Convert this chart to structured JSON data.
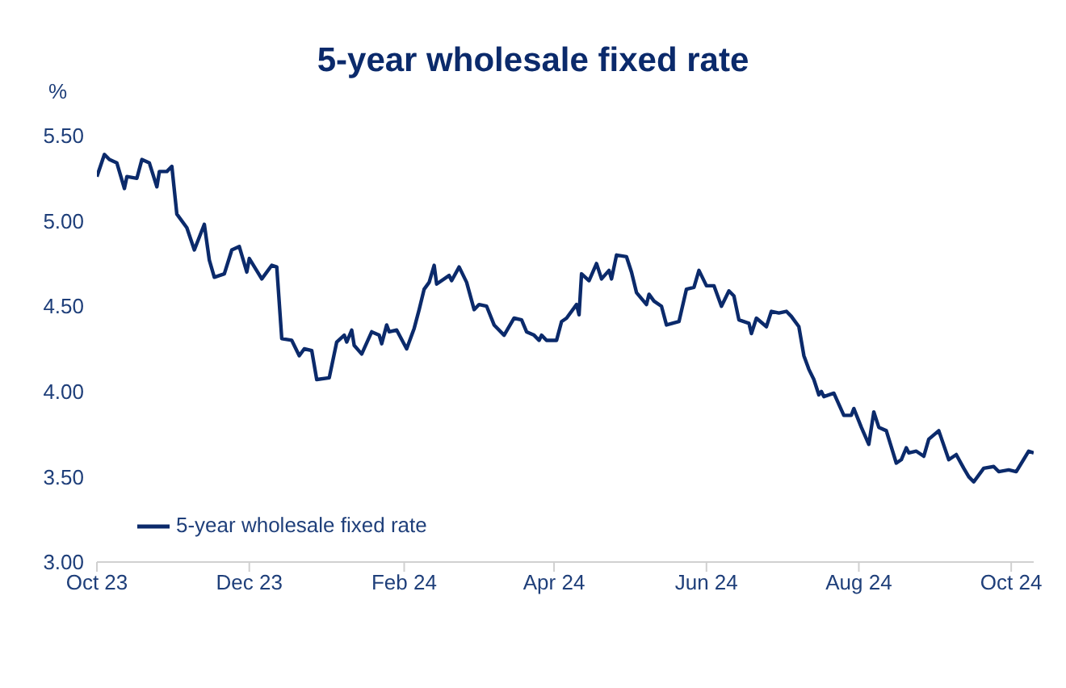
{
  "chart_data": {
    "type": "line",
    "title": "5-year wholesale fixed rate",
    "ylabel": "%",
    "x": [
      "2023-10-01",
      "2023-10-04",
      "2023-10-06",
      "2023-10-09",
      "2023-10-12",
      "2023-10-13",
      "2023-10-17",
      "2023-10-19",
      "2023-10-22",
      "2023-10-25",
      "2023-10-26",
      "2023-10-29",
      "2023-10-31",
      "2023-11-02",
      "2023-11-06",
      "2023-11-09",
      "2023-11-13",
      "2023-11-15",
      "2023-11-17",
      "2023-11-21",
      "2023-11-24",
      "2023-11-27",
      "2023-11-30",
      "2023-12-01",
      "2023-12-06",
      "2023-12-10",
      "2023-12-12",
      "2023-12-14",
      "2023-12-18",
      "2023-12-21",
      "2023-12-23",
      "2023-12-26",
      "2023-12-28",
      "2024-01-02",
      "2024-01-05",
      "2024-01-08",
      "2024-01-09",
      "2024-01-11",
      "2024-01-12",
      "2024-01-15",
      "2024-01-19",
      "2024-01-22",
      "2024-01-23",
      "2024-01-25",
      "2024-01-26",
      "2024-01-29",
      "2024-02-02",
      "2024-02-05",
      "2024-02-07",
      "2024-02-09",
      "2024-02-11",
      "2024-02-13",
      "2024-02-14",
      "2024-02-19",
      "2024-02-20",
      "2024-02-23",
      "2024-02-26",
      "2024-02-29",
      "2024-03-02",
      "2024-03-05",
      "2024-03-08",
      "2024-03-12",
      "2024-03-16",
      "2024-03-19",
      "2024-03-21",
      "2024-03-24",
      "2024-03-26",
      "2024-03-27",
      "2024-03-29",
      "2024-04-02",
      "2024-04-04",
      "2024-04-06",
      "2024-04-10",
      "2024-04-11",
      "2024-04-12",
      "2024-04-15",
      "2024-04-18",
      "2024-04-20",
      "2024-04-23",
      "2024-04-24",
      "2024-04-26",
      "2024-04-30",
      "2024-05-02",
      "2024-05-04",
      "2024-05-08",
      "2024-05-09",
      "2024-05-11",
      "2024-05-14",
      "2024-05-16",
      "2024-05-21",
      "2024-05-24",
      "2024-05-27",
      "2024-05-29",
      "2024-06-01",
      "2024-06-04",
      "2024-06-07",
      "2024-06-10",
      "2024-06-12",
      "2024-06-14",
      "2024-06-18",
      "2024-06-19",
      "2024-06-21",
      "2024-06-25",
      "2024-06-27",
      "2024-06-30",
      "2024-07-03",
      "2024-07-05",
      "2024-07-08",
      "2024-07-10",
      "2024-07-12",
      "2024-07-14",
      "2024-07-16",
      "2024-07-17",
      "2024-07-18",
      "2024-07-22",
      "2024-07-26",
      "2024-07-29",
      "2024-07-30",
      "2024-08-02",
      "2024-08-05",
      "2024-08-07",
      "2024-08-09",
      "2024-08-12",
      "2024-08-16",
      "2024-08-18",
      "2024-08-20",
      "2024-08-21",
      "2024-08-24",
      "2024-08-27",
      "2024-08-29",
      "2024-09-02",
      "2024-09-06",
      "2024-09-09",
      "2024-09-12",
      "2024-09-14",
      "2024-09-16",
      "2024-09-20",
      "2024-09-24",
      "2024-09-26",
      "2024-09-30",
      "2024-10-03",
      "2024-10-08",
      "2024-10-10"
    ],
    "series": [
      {
        "name": "5-year wholesale fixed rate",
        "color": "#0b2a6b",
        "values": [
          5.26,
          5.39,
          5.36,
          5.34,
          5.19,
          5.26,
          5.25,
          5.36,
          5.34,
          5.2,
          5.29,
          5.29,
          5.32,
          5.04,
          4.96,
          4.83,
          4.98,
          4.77,
          4.67,
          4.69,
          4.83,
          4.85,
          4.7,
          4.78,
          4.66,
          4.74,
          4.73,
          4.31,
          4.3,
          4.21,
          4.25,
          4.24,
          4.07,
          4.08,
          4.29,
          4.33,
          4.29,
          4.36,
          4.27,
          4.22,
          4.35,
          4.33,
          4.28,
          4.39,
          4.35,
          4.36,
          4.25,
          4.37,
          4.48,
          4.6,
          4.64,
          4.74,
          4.63,
          4.68,
          4.65,
          4.73,
          4.64,
          4.48,
          4.51,
          4.5,
          4.39,
          4.33,
          4.43,
          4.42,
          4.35,
          4.33,
          4.3,
          4.33,
          4.3,
          4.3,
          4.41,
          4.43,
          4.51,
          4.45,
          4.69,
          4.65,
          4.75,
          4.66,
          4.71,
          4.66,
          4.8,
          4.79,
          4.7,
          4.58,
          4.51,
          4.57,
          4.53,
          4.5,
          4.39,
          4.41,
          4.6,
          4.61,
          4.71,
          4.62,
          4.62,
          4.5,
          4.59,
          4.56,
          4.42,
          4.4,
          4.34,
          4.43,
          4.38,
          4.47,
          4.46,
          4.47,
          4.44,
          4.38,
          4.21,
          4.13,
          4.07,
          3.98,
          4.0,
          3.97,
          3.99,
          3.86,
          3.86,
          3.9,
          3.79,
          3.69,
          3.88,
          3.79,
          3.77,
          3.58,
          3.6,
          3.67,
          3.64,
          3.65,
          3.62,
          3.72,
          3.77,
          3.6,
          3.63,
          3.55,
          3.5,
          3.47,
          3.55,
          3.56,
          3.53,
          3.54,
          3.53,
          3.65,
          3.64
        ]
      }
    ],
    "xlim": [
      "2023-10-01",
      "2024-10-10"
    ],
    "xticks": [
      {
        "value": "2023-10-01",
        "label": "Oct 23"
      },
      {
        "value": "2023-12-01",
        "label": "Dec 23"
      },
      {
        "value": "2024-02-01",
        "label": "Feb 24"
      },
      {
        "value": "2024-04-01",
        "label": "Apr 24"
      },
      {
        "value": "2024-06-01",
        "label": "Jun 24"
      },
      {
        "value": "2024-08-01",
        "label": "Aug 24"
      },
      {
        "value": "2024-10-01",
        "label": "Oct 24"
      }
    ],
    "ylim": [
      3.0,
      5.5
    ],
    "yticks": [
      {
        "value": 3.0,
        "label": "3.00"
      },
      {
        "value": 3.5,
        "label": "3.50"
      },
      {
        "value": 4.0,
        "label": "4.00"
      },
      {
        "value": 4.5,
        "label": "4.50"
      },
      {
        "value": 5.0,
        "label": "5.00"
      },
      {
        "value": 5.5,
        "label": "5.50"
      }
    ],
    "legend": "bottom left",
    "grid": false,
    "marker": "none",
    "line_style": "solid"
  }
}
